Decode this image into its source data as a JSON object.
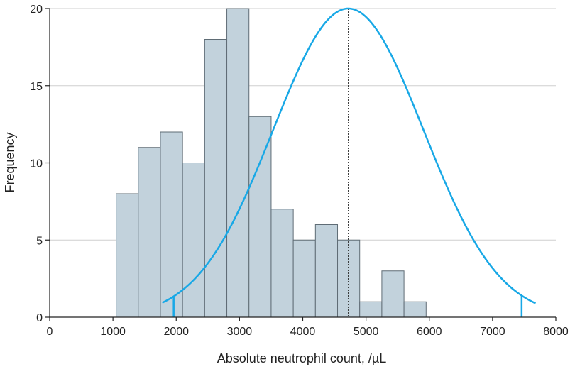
{
  "chart_data": {
    "type": "bar",
    "title": "",
    "xlabel": "Absolute neutrophil count, /µL",
    "ylabel": "Frequency",
    "xlim": [
      0,
      8000
    ],
    "ylim": [
      0,
      20
    ],
    "x_ticks": [
      0,
      1000,
      2000,
      3000,
      4000,
      5000,
      6000,
      7000,
      8000
    ],
    "x_tick_labels": [
      "0",
      "1000",
      "2000",
      "3000",
      "4000",
      "5000",
      "6000",
      "7000",
      "8000"
    ],
    "y_ticks": [
      0,
      5,
      10,
      15,
      20
    ],
    "y_tick_labels": [
      "0",
      "5",
      "10",
      "15",
      "20"
    ],
    "grid": "horizontal",
    "bin_width": 350,
    "bins": [
      {
        "x_start": 1050,
        "value": 8
      },
      {
        "x_start": 1400,
        "value": 11
      },
      {
        "x_start": 1750,
        "value": 12
      },
      {
        "x_start": 2100,
        "value": 10
      },
      {
        "x_start": 2450,
        "value": 18
      },
      {
        "x_start": 2800,
        "value": 20
      },
      {
        "x_start": 3150,
        "value": 13
      },
      {
        "x_start": 3500,
        "value": 7
      },
      {
        "x_start": 3850,
        "value": 5
      },
      {
        "x_start": 4200,
        "value": 6
      },
      {
        "x_start": 4550,
        "value": 5
      },
      {
        "x_start": 4900,
        "value": 1
      },
      {
        "x_start": 5250,
        "value": 3
      },
      {
        "x_start": 5600,
        "value": 1
      }
    ],
    "normal_curve": {
      "mean": 4720,
      "lower_limit": 1960,
      "upper_limit": 7460,
      "x_min": 1780,
      "x_max": 7680,
      "peak": 20,
      "value_at_x_min": 0.9
    },
    "colors": {
      "bar_fill": "#c2d2dc",
      "bar_stroke": "#5f6c75",
      "curve": "#18a8e6",
      "axis": "#222222",
      "grid": "#cfcfcf",
      "mean_line": "#333333"
    }
  }
}
